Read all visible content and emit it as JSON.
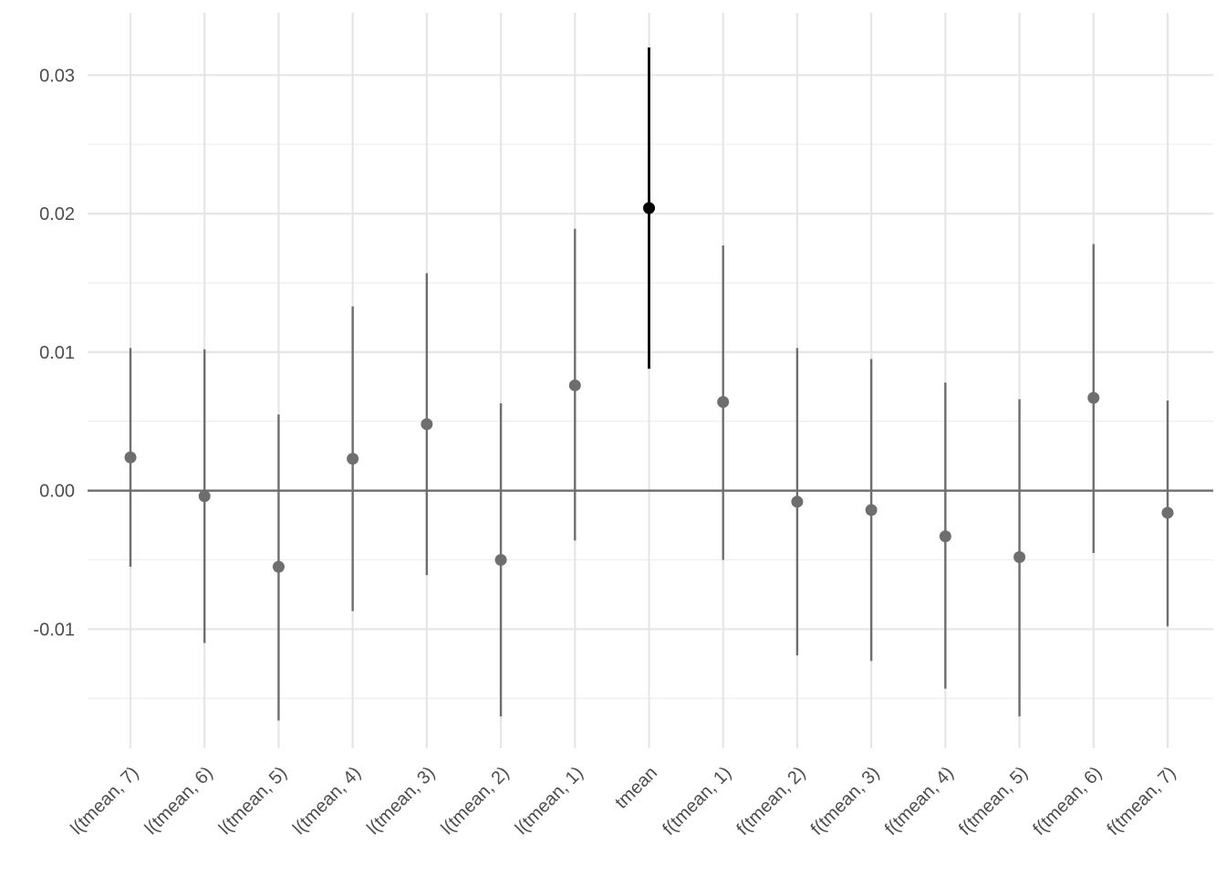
{
  "chart_data": {
    "type": "scatter",
    "title": "",
    "xlabel": "",
    "ylabel": "",
    "categories": [
      "l(tmean, 7)",
      "l(tmean, 6)",
      "l(tmean, 5)",
      "l(tmean, 4)",
      "l(tmean, 3)",
      "l(tmean, 2)",
      "l(tmean, 1)",
      "tmean",
      "f(tmean, 1)",
      "f(tmean, 2)",
      "f(tmean, 3)",
      "f(tmean, 4)",
      "f(tmean, 5)",
      "f(tmean, 6)",
      "f(tmean, 7)"
    ],
    "estimates": [
      0.0024,
      -0.0004,
      -0.0055,
      0.0023,
      0.0048,
      -0.005,
      0.0076,
      0.0204,
      0.0064,
      -0.0008,
      -0.0014,
      -0.0033,
      -0.0048,
      0.0067,
      -0.0016
    ],
    "ci_low": [
      -0.0055,
      -0.011,
      -0.0166,
      -0.0087,
      -0.0061,
      -0.0163,
      -0.0036,
      0.0088,
      -0.005,
      -0.0119,
      -0.0123,
      -0.0143,
      -0.0163,
      -0.0045,
      -0.0098
    ],
    "ci_high": [
      0.0103,
      0.0102,
      0.0055,
      0.0133,
      0.0157,
      0.0063,
      0.0189,
      0.032,
      0.0177,
      0.0103,
      0.0095,
      0.0078,
      0.0066,
      0.0178,
      0.0065
    ],
    "highlight_index": 7,
    "y_ticks": [
      -0.01,
      0,
      0.01,
      0.02,
      0.03
    ],
    "y_tick_labels": [
      "-0.01",
      "0.00",
      "0.01",
      "0.02",
      "0.03"
    ],
    "ylim": [
      -0.0186,
      0.0345
    ],
    "reference_line_y": 0,
    "grid": true,
    "legend": "none",
    "colors": {
      "default": "#6e6e6e",
      "highlight": "#000000",
      "grid": "#e6e6e6",
      "axis_text": "#4d4d4d",
      "background": "#ffffff"
    }
  }
}
